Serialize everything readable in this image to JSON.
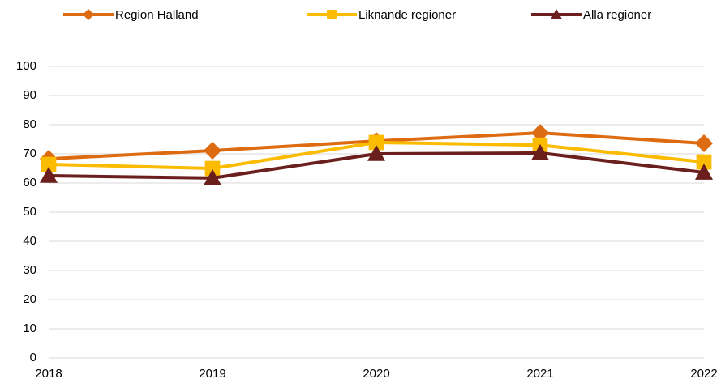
{
  "chart_data": {
    "type": "line",
    "categories": [
      "2018",
      "2019",
      "2020",
      "2021",
      "2022"
    ],
    "series": [
      {
        "name": "Region Halland",
        "color": "#dd6b12",
        "marker": "diamond",
        "values": [
          68.3,
          71.1,
          74.4,
          77.2,
          73.6
        ]
      },
      {
        "name": "Liknande regioner",
        "color": "#fbbb00",
        "marker": "square",
        "values": [
          66.4,
          65,
          73.9,
          73,
          67.2
        ]
      },
      {
        "name": "Alla regioner",
        "color": "#6b1f1c",
        "marker": "triangle",
        "values": [
          62.5,
          61.7,
          70,
          70.3,
          63.6
        ]
      }
    ],
    "ylim": [
      0,
      100
    ],
    "yticks": [
      0,
      10,
      20,
      30,
      40,
      50,
      60,
      70,
      80,
      90,
      100
    ],
    "grid": true,
    "legend": "top"
  }
}
